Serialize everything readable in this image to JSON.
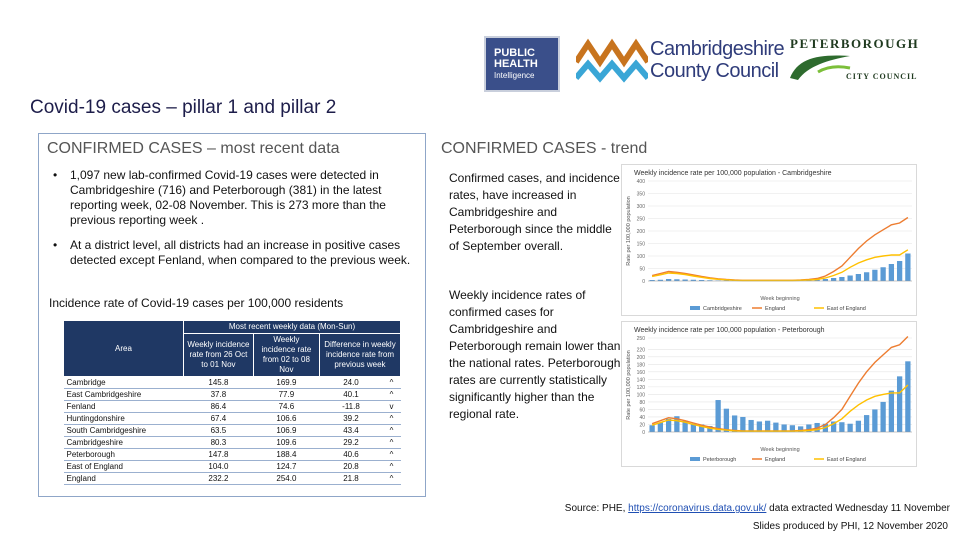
{
  "logos": {
    "phi": [
      "PUBLIC",
      "HEALTH",
      "Intelligence"
    ],
    "ccc": [
      "Cambridgeshire",
      "County Council"
    ],
    "pcc_top": "PETERBOROUGH",
    "pcc_bottom": "CITY COUNCIL",
    "colors": {
      "phi_bg": "#3a4f8a",
      "ccc_orange": "#c8741e",
      "ccc_blue": "#3aa6d6",
      "pcc_green": "#2e6b2e"
    }
  },
  "title": "Covid-19 cases – pillar 1 and pillar 2",
  "left_panel": {
    "heading": "CONFIRMED CASES – most recent data",
    "bullets": [
      "1,097 new lab-confirmed Covid-19 cases were detected in Cambridgeshire (716) and Peterborough (381) in the latest reporting week, 02-08 November. This is 273 more than the previous reporting week .",
      "At a district level, all districts had an increase in positive cases detected except Fenland, when compared to the previous week."
    ],
    "incidence_heading": "Incidence rate of Covid-19 cases per 100,000 residents",
    "table": {
      "group_header": "Most recent weekly data (Mon-Sun)",
      "area_header": "Area",
      "col_headers": [
        "Weekly incidence rate from 26 Oct to 01 Nov",
        "Weekly incidence rate from 02 to 08 Nov",
        "Difference in weekly incidence rate from previous week"
      ],
      "rows": [
        {
          "area": "Cambridge",
          "prev": "145.8",
          "curr": "169.9",
          "diff": "24.0",
          "arrow": "^"
        },
        {
          "area": "East Cambridgeshire",
          "prev": "37.8",
          "curr": "77.9",
          "diff": "40.1",
          "arrow": "^"
        },
        {
          "area": "Fenland",
          "prev": "86.4",
          "curr": "74.6",
          "diff": "-11.8",
          "arrow": "v"
        },
        {
          "area": "Huntingdonshire",
          "prev": "67.4",
          "curr": "106.6",
          "diff": "39.2",
          "arrow": "^"
        },
        {
          "area": "South Cambridgeshire",
          "prev": "63.5",
          "curr": "106.9",
          "diff": "43.4",
          "arrow": "^"
        },
        {
          "area": "Cambridgeshire",
          "prev": "80.3",
          "curr": "109.6",
          "diff": "29.2",
          "arrow": "^"
        },
        {
          "area": "Peterborough",
          "prev": "147.8",
          "curr": "188.4",
          "diff": "40.6",
          "arrow": "^"
        },
        {
          "area": "East of England",
          "prev": "104.0",
          "curr": "124.7",
          "diff": "20.8",
          "arrow": "^"
        },
        {
          "area": "England",
          "prev": "232.2",
          "curr": "254.0",
          "diff": "21.8",
          "arrow": "^"
        }
      ]
    }
  },
  "right_panel": {
    "heading": "CONFIRMED CASES - trend",
    "text1": "Confirmed cases, and incidence rates, have increased in Cambridgeshire and Peterborough since the middle of September overall.",
    "text2": "Weekly incidence rates of confirmed cases for Cambridgeshire and Peterborough remain lower than the national rates. Peterborough rates are currently statistically significantly higher than the regional rate."
  },
  "chart_data": [
    {
      "type": "bar",
      "title": "Weekly incidence rate per 100,000 population - Cambridgeshire",
      "ylabel": "Rate per 100,000 population",
      "xlabel": "Week beginning",
      "ylim": [
        0,
        400
      ],
      "y_ticks": [
        0,
        50,
        100,
        150,
        200,
        250,
        300,
        350,
        400
      ],
      "series": [
        {
          "name": "Cambridgeshire",
          "kind": "bar",
          "color": "#5b9bd5",
          "values": [
            4,
            5,
            8,
            7,
            6,
            5,
            4,
            3,
            2,
            2,
            2,
            2,
            2,
            2,
            2,
            2,
            2,
            2,
            3,
            4,
            5,
            8,
            12,
            16,
            22,
            28,
            35,
            45,
            55,
            68,
            80,
            110
          ]
        },
        {
          "name": "England",
          "kind": "line",
          "color": "#ed7d31",
          "values": [
            22,
            30,
            38,
            35,
            30,
            24,
            18,
            13,
            9,
            6,
            4,
            3,
            3,
            3,
            3,
            3,
            3,
            3,
            4,
            6,
            10,
            20,
            38,
            60,
            95,
            130,
            160,
            185,
            205,
            225,
            232,
            254
          ]
        },
        {
          "name": "East of England",
          "kind": "line",
          "color": "#ffc000",
          "values": [
            18,
            25,
            32,
            30,
            26,
            20,
            15,
            10,
            7,
            5,
            3,
            2,
            2,
            2,
            2,
            2,
            2,
            2,
            3,
            4,
            6,
            12,
            22,
            35,
            55,
            72,
            85,
            95,
            100,
            104,
            104,
            125
          ]
        }
      ],
      "legend": "bottom"
    },
    {
      "type": "bar",
      "title": "Weekly incidence rate per 100,000 population - Peterborough",
      "ylabel": "Rate per 100,000 population",
      "xlabel": "Week beginning",
      "ylim": [
        0,
        250
      ],
      "y_ticks": [
        0,
        20,
        40,
        60,
        80,
        100,
        120,
        140,
        160,
        180,
        200,
        220,
        250
      ],
      "series": [
        {
          "name": "Peterborough",
          "kind": "bar",
          "color": "#5b9bd5",
          "values": [
            18,
            25,
            35,
            42,
            30,
            22,
            20,
            16,
            85,
            62,
            44,
            40,
            32,
            28,
            30,
            25,
            20,
            18,
            15,
            20,
            24,
            22,
            28,
            26,
            22,
            30,
            45,
            60,
            80,
            110,
            148,
            188
          ]
        },
        {
          "name": "England",
          "kind": "line",
          "color": "#ed7d31",
          "values": [
            22,
            30,
            38,
            35,
            30,
            24,
            18,
            13,
            9,
            6,
            4,
            3,
            3,
            3,
            3,
            3,
            3,
            3,
            4,
            6,
            10,
            20,
            38,
            60,
            95,
            130,
            160,
            185,
            205,
            225,
            232,
            254
          ]
        },
        {
          "name": "East of England",
          "kind": "line",
          "color": "#ffc000",
          "values": [
            18,
            25,
            32,
            30,
            26,
            20,
            15,
            10,
            7,
            5,
            3,
            2,
            2,
            2,
            2,
            2,
            2,
            2,
            3,
            4,
            6,
            12,
            22,
            35,
            55,
            72,
            85,
            95,
            100,
            104,
            104,
            125
          ]
        }
      ],
      "legend": "bottom"
    }
  ],
  "footer": {
    "source_prefix": "Source: PHE, ",
    "source_link": "https://coronavirus.data.gov.uk/",
    "source_suffix": " data extracted Wednesday 11 November",
    "slides": "Slides produced by PHI, 12 November 2020"
  }
}
